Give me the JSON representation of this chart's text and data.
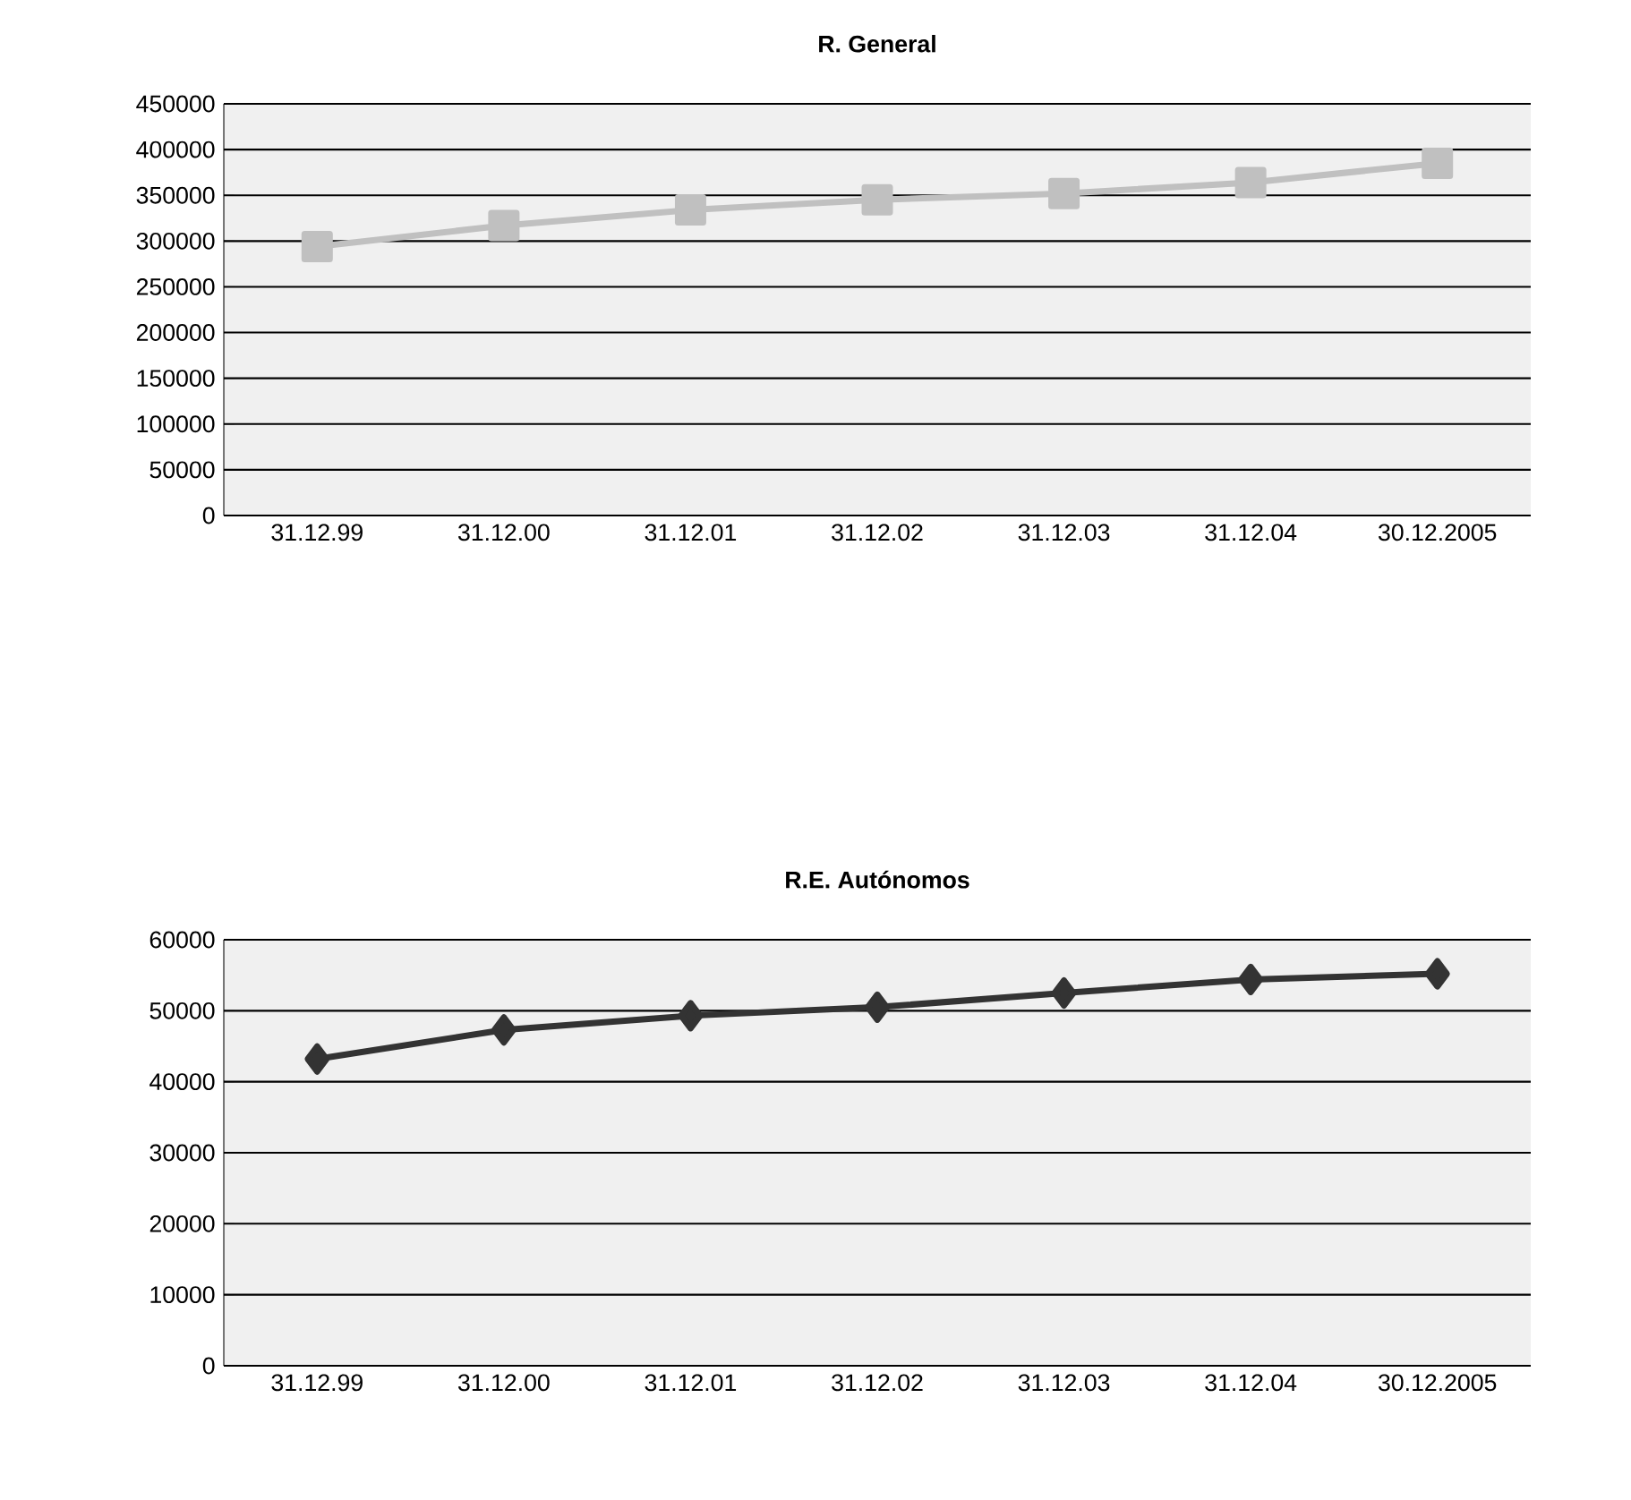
{
  "chart_data": [
    {
      "type": "line",
      "title": "R. General",
      "categories": [
        "31.12.99",
        "31.12.00",
        "31.12.01",
        "31.12.02",
        "31.12.03",
        "31.12.04",
        "30.12.2005"
      ],
      "series": [
        {
          "color": "#c0c0c0",
          "values": [
            294000,
            317000,
            334000,
            345000,
            352000,
            364000,
            385000
          ]
        }
      ],
      "ylim": [
        0,
        450000
      ],
      "yticks": [
        0,
        50000,
        100000,
        150000,
        200000,
        250000,
        300000,
        350000,
        400000,
        450000
      ],
      "grid": "y",
      "marker": "square",
      "line_style": "solid"
    },
    {
      "type": "line",
      "title": "R.E. Autónomos",
      "categories": [
        "31.12.99",
        "31.12.00",
        "31.12.01",
        "31.12.02",
        "31.12.03",
        "31.12.04",
        "30.12.2005"
      ],
      "series": [
        {
          "color": "#333333",
          "values": [
            43200,
            47300,
            49300,
            50500,
            52500,
            54400,
            55200
          ]
        }
      ],
      "ylim": [
        0,
        60000
      ],
      "yticks": [
        0,
        10000,
        20000,
        30000,
        40000,
        50000,
        60000
      ],
      "grid": "y",
      "marker": "diamond",
      "line_style": "solid"
    }
  ]
}
